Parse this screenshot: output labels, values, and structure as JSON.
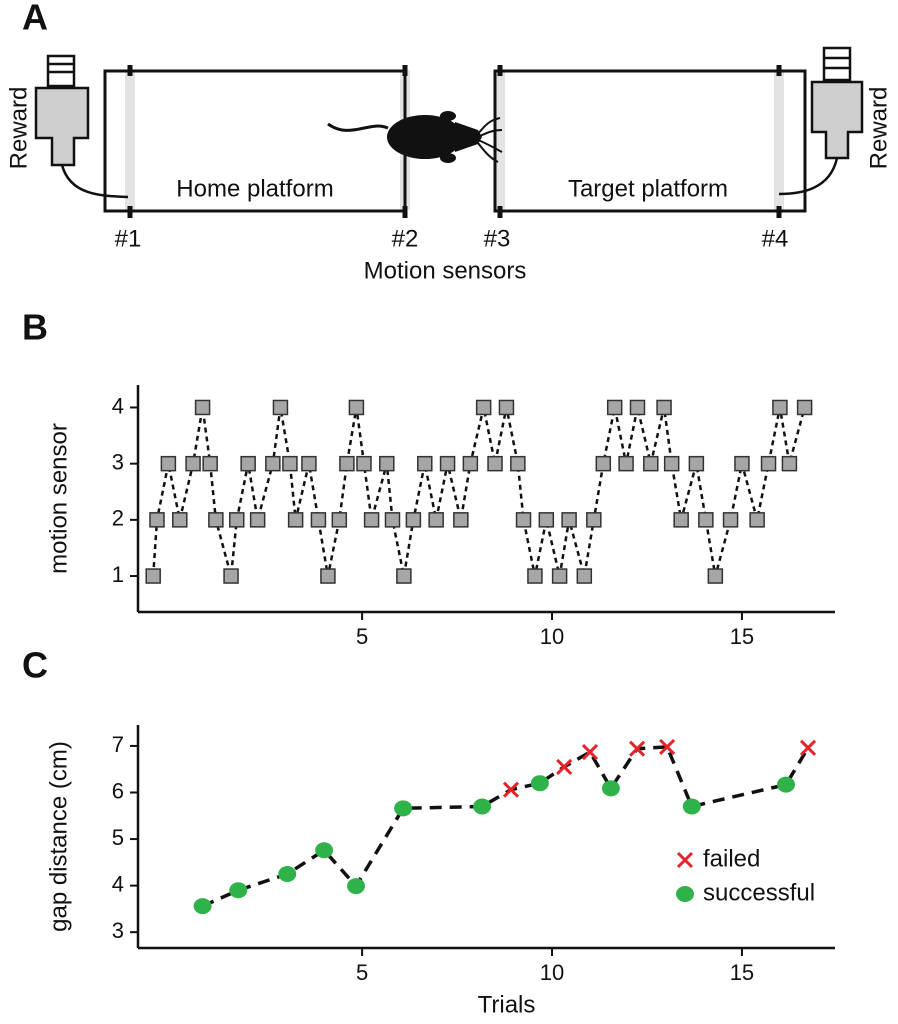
{
  "diagram": {
    "panel": "A",
    "reward_left": "Reward",
    "reward_right": "Reward",
    "home": "Home platform",
    "target": "Target platform",
    "sensors": [
      "#1",
      "#2",
      "#3",
      "#4"
    ],
    "sensors_label": "Motion sensors"
  },
  "chart_data": [
    {
      "panel": "B",
      "type": "line",
      "y_label": "motion sensor",
      "color": "#a6a6a6",
      "x": [
        -0.5,
        -0.4,
        -0.1,
        0.2,
        0.55,
        0.8,
        1.0,
        1.15,
        1.55,
        1.7,
        2.0,
        2.25,
        2.65,
        2.85,
        3.1,
        3.25,
        3.6,
        3.85,
        4.1,
        4.4,
        4.6,
        4.85,
        5.05,
        5.25,
        5.65,
        5.8,
        6.1,
        6.35,
        6.65,
        6.95,
        7.25,
        7.6,
        7.85,
        8.2,
        8.5,
        8.8,
        9.1,
        9.25,
        9.55,
        9.85,
        10.2,
        10.45,
        10.85,
        11.1,
        11.35,
        11.65,
        11.95,
        12.25,
        12.6,
        12.95,
        13.15,
        13.4,
        13.8,
        14.05,
        14.3,
        14.7,
        15.0,
        15.4,
        15.7,
        16.0,
        16.25,
        16.65
      ],
      "values": [
        1,
        2,
        3,
        2,
        3,
        4,
        3,
        2,
        1,
        2,
        3,
        2,
        3,
        4,
        3,
        2,
        3,
        2,
        1,
        2,
        3,
        4,
        3,
        2,
        3,
        2,
        1,
        2,
        3,
        2,
        3,
        2,
        3,
        4,
        3,
        4,
        3,
        2,
        1,
        2,
        1,
        2,
        1,
        2,
        3,
        4,
        3,
        4,
        3,
        4,
        3,
        2,
        3,
        2,
        1,
        2,
        3,
        2,
        3,
        4,
        3,
        4
      ],
      "xlim": [
        -0.9,
        17.45
      ],
      "ylim": [
        0.36,
        4.4
      ],
      "xticks": [
        5,
        10,
        15
      ],
      "yticks": [
        1,
        2,
        3,
        4
      ]
    },
    {
      "panel": "C",
      "type": "scatter",
      "y_label": "gap distance (cm)",
      "x_label": "Trials",
      "connect": true,
      "series": [
        {
          "name": "failed",
          "color": "#e3242b",
          "marker": "x",
          "x": [
            8.92,
            10.32,
            11.0,
            12.24,
            13.03,
            16.74
          ],
          "values": [
            6.06,
            6.55,
            6.87,
            6.94,
            6.98,
            6.96
          ]
        },
        {
          "name": "successful",
          "color": "#2fb24a",
          "marker": "circle",
          "x": [
            0.8,
            1.74,
            3.03,
            4.0,
            4.84,
            6.08,
            8.16,
            9.68,
            11.55,
            13.68,
            16.16
          ],
          "values": [
            3.56,
            3.9,
            4.25,
            4.76,
            3.99,
            5.66,
            5.7,
            6.2,
            6.09,
            5.7,
            6.17
          ]
        }
      ],
      "xlim": [
        -0.9,
        17.45
      ],
      "ylim": [
        2.66,
        7.45
      ],
      "xticks": [
        5,
        10,
        15
      ],
      "yticks": [
        3,
        4,
        5,
        6,
        7
      ],
      "legend": "lower right"
    }
  ]
}
